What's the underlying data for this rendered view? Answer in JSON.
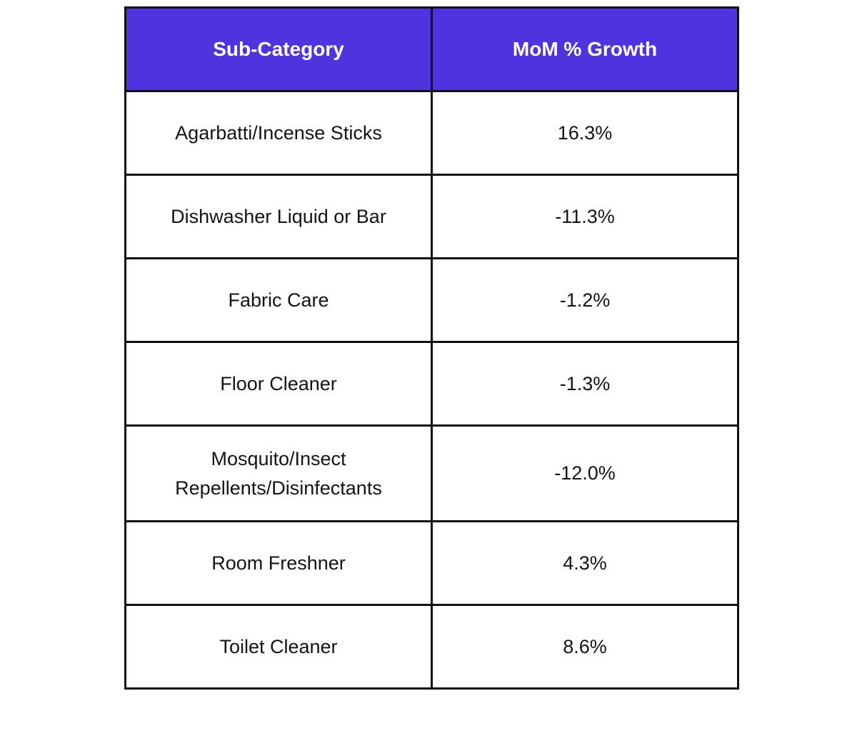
{
  "colors": {
    "header_bg": "#4e34de",
    "header_text": "#ffffff",
    "border": "#111111",
    "cell_text": "#141414"
  },
  "chart_data": {
    "type": "table",
    "columns": [
      "Sub-Category",
      "MoM % Growth"
    ],
    "rows": [
      {
        "sub_category": "Agarbatti/Incense Sticks",
        "growth": "16.3%",
        "value": 16.3
      },
      {
        "sub_category": "Dishwasher Liquid or Bar",
        "growth": "-11.3%",
        "value": -11.3
      },
      {
        "sub_category": "Fabric Care",
        "growth": "-1.2%",
        "value": -1.2
      },
      {
        "sub_category": "Floor Cleaner",
        "growth": "-1.3%",
        "value": -1.3
      },
      {
        "sub_category": "Mosquito/Insect Repellents/Disinfectants",
        "growth": "-12.0%",
        "value": -12.0
      },
      {
        "sub_category": "Room Freshner",
        "growth": "4.3%",
        "value": 4.3
      },
      {
        "sub_category": "Toilet Cleaner",
        "growth": "8.6%",
        "value": 8.6
      }
    ]
  }
}
